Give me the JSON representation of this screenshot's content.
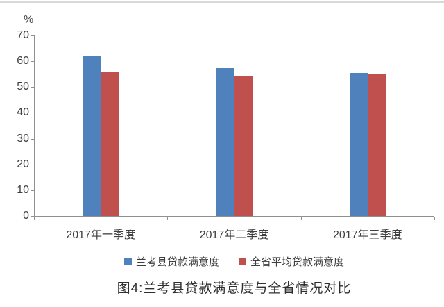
{
  "chart_data": {
    "type": "bar",
    "title": "图4:兰考县贷款满意度与全省情况对比",
    "ylabel": "%",
    "ylim": [
      0,
      70
    ],
    "yticks": [
      0,
      10,
      20,
      30,
      40,
      50,
      60,
      70
    ],
    "grid": false,
    "legend_position": "bottom",
    "categories": [
      "2017年一季度",
      "2017年二季度",
      "2017年三季度"
    ],
    "series": [
      {
        "name": "兰考县贷款满意度",
        "color": "#4F81BD",
        "values": [
          62,
          57.3,
          55.5
        ]
      },
      {
        "name": "全省平均贷款满意度",
        "color": "#C0504D",
        "values": [
          56,
          54.1,
          54.9
        ]
      }
    ],
    "axis_color": "#909090",
    "text_color": "#3f3f3f"
  }
}
